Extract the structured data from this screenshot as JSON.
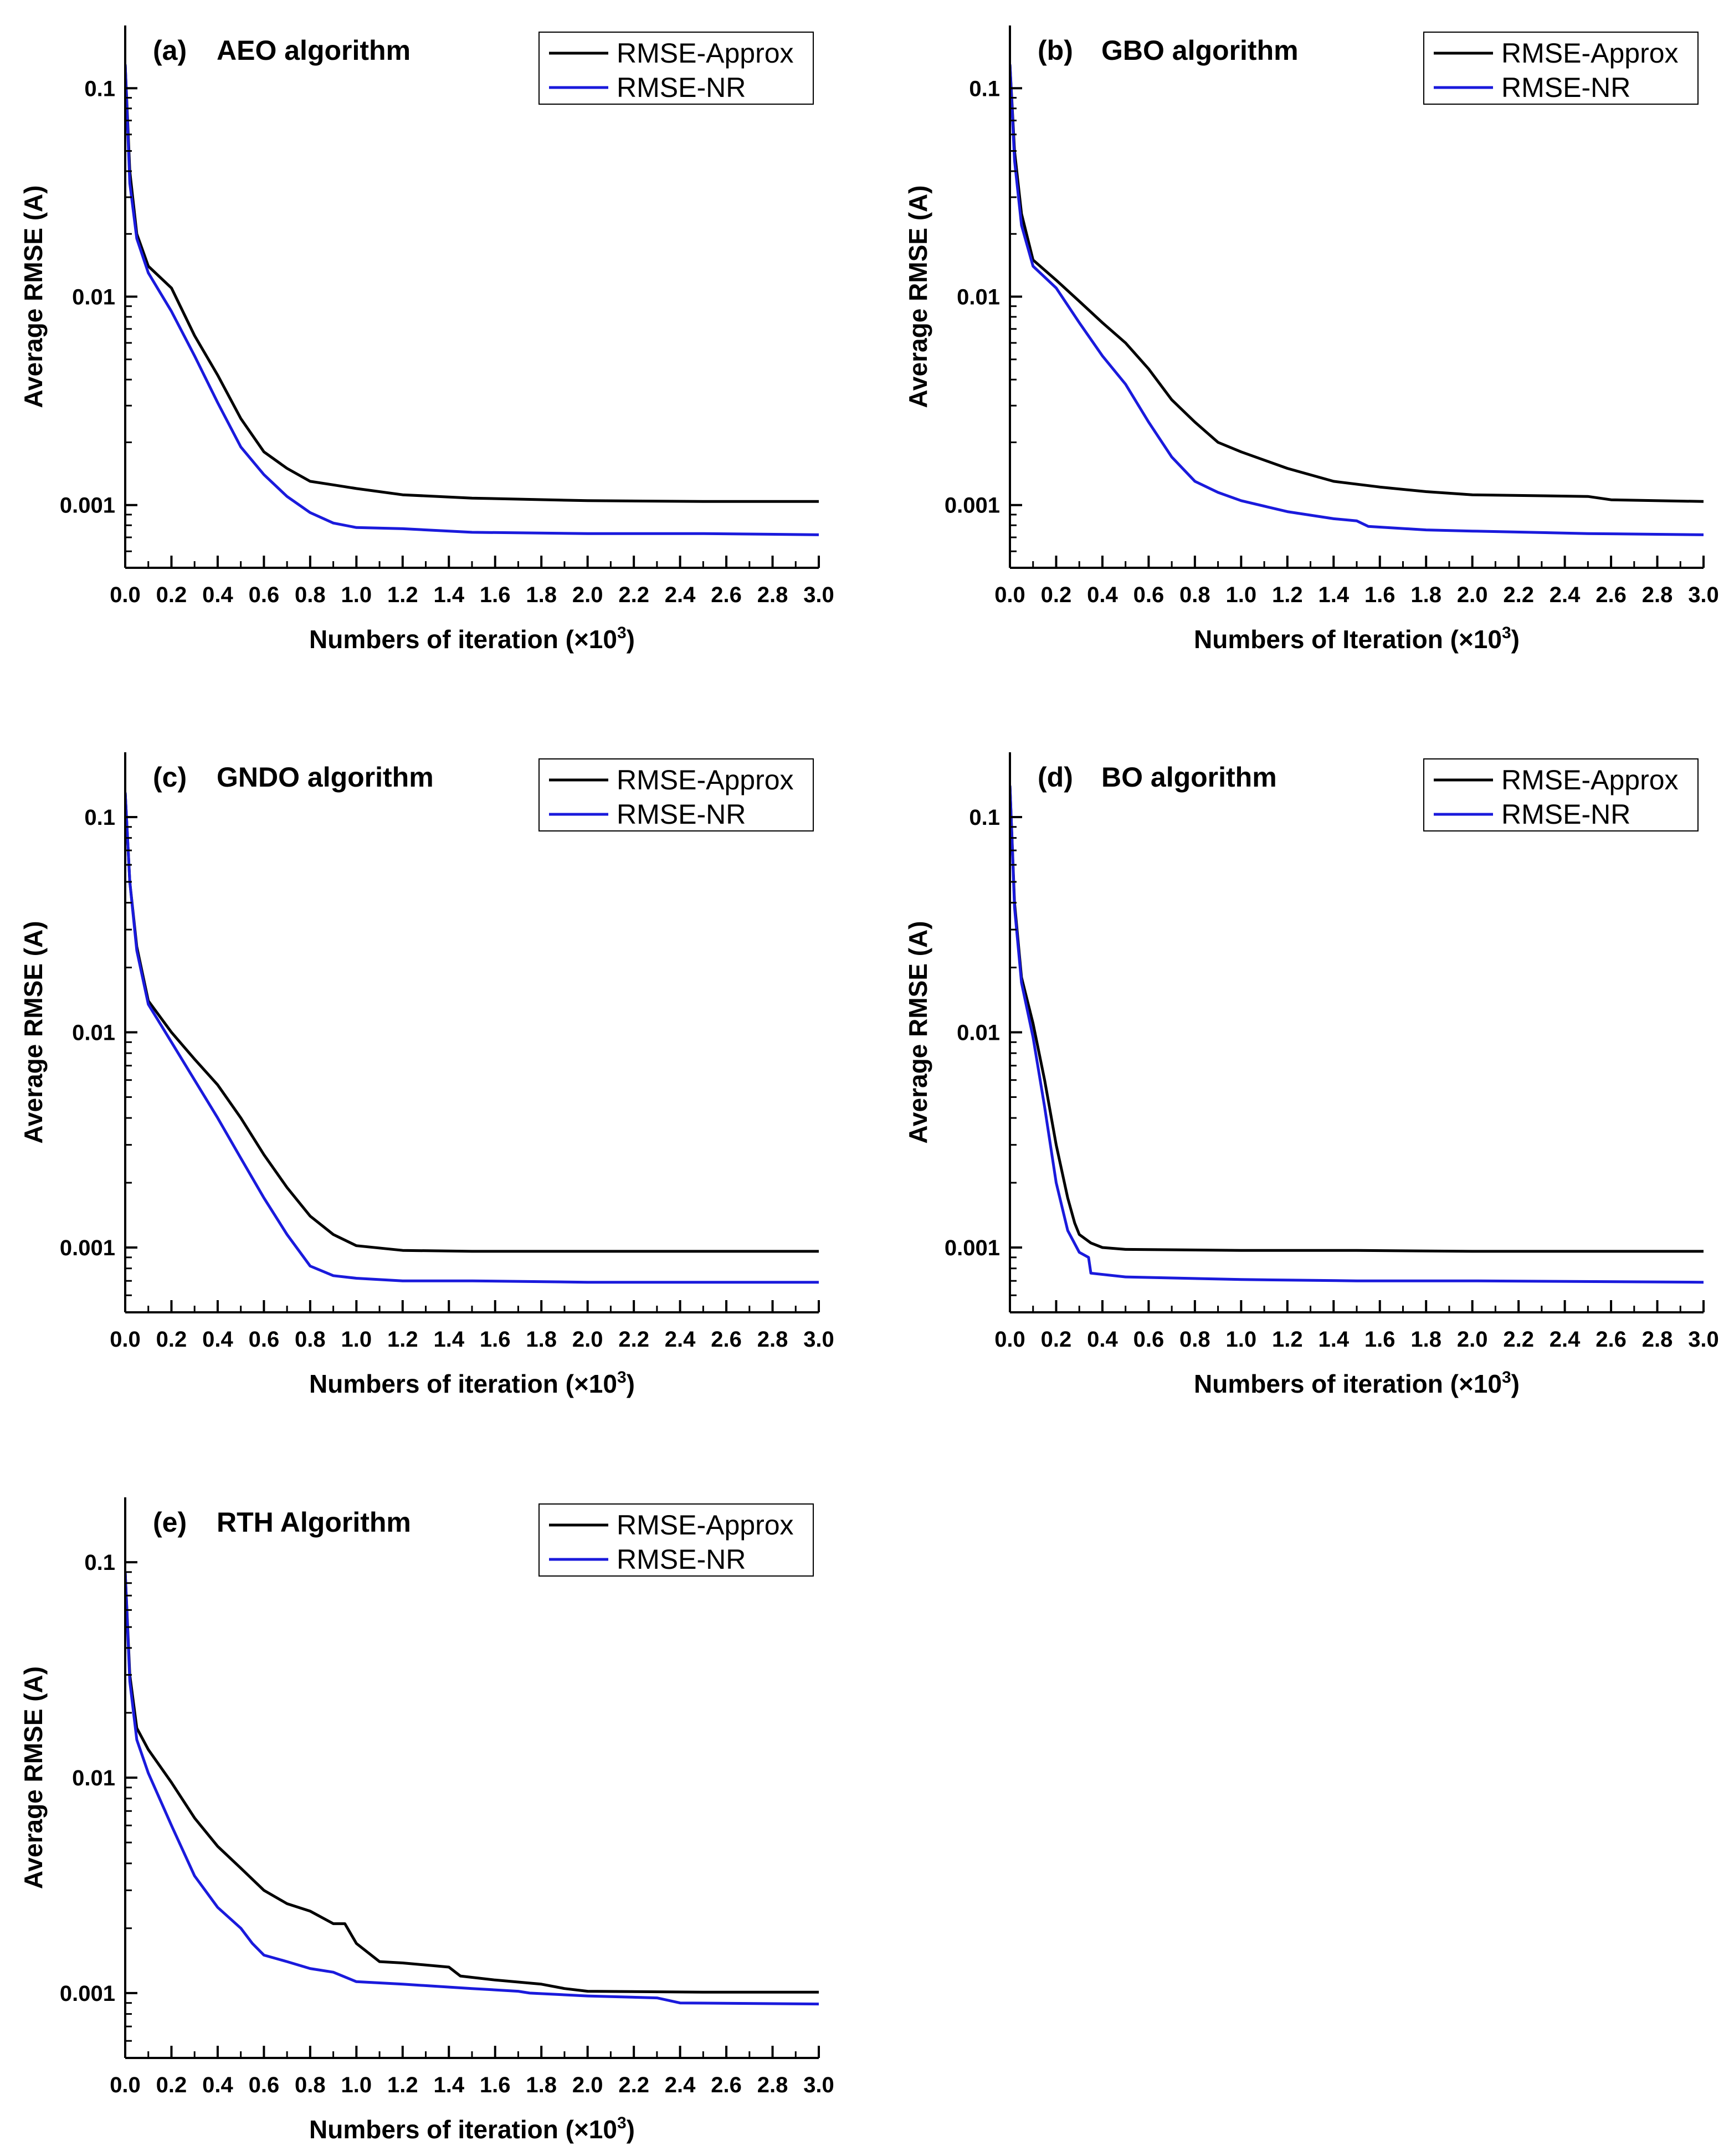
{
  "figure": {
    "background": "#ffffff",
    "axis_color": "#000000"
  },
  "chart_data": [
    {
      "type": "line",
      "panel_label": "(a)",
      "title": "AEO algorithm",
      "xlabel": "Numbers of iteration (×10",
      "xlabel_sup": "3",
      "xlabel_end": ")",
      "ylabel": "Average RMSE (A)",
      "xlim": [
        0,
        3.0
      ],
      "ylim": [
        0.0005,
        0.2
      ],
      "yscale": "log",
      "x_ticks": [
        "0.0",
        "0.2",
        "0.4",
        "0.6",
        "0.8",
        "1.0",
        "1.2",
        "1.4",
        "1.6",
        "1.8",
        "2.0",
        "2.2",
        "2.4",
        "2.6",
        "2.8",
        "3.0"
      ],
      "y_ticks": [
        {
          "value": 0.001,
          "label": "0.001"
        },
        {
          "value": 0.01,
          "label": "0.01"
        },
        {
          "value": 0.1,
          "label": "0.1"
        }
      ],
      "legend_position": "top-right",
      "series": [
        {
          "name": "RMSE-Approx",
          "color": "#000000",
          "points": [
            [
              0,
              0.13
            ],
            [
              0.02,
              0.04
            ],
            [
              0.05,
              0.02
            ],
            [
              0.1,
              0.014
            ],
            [
              0.2,
              0.011
            ],
            [
              0.3,
              0.0065
            ],
            [
              0.4,
              0.0042
            ],
            [
              0.5,
              0.0026
            ],
            [
              0.6,
              0.0018
            ],
            [
              0.7,
              0.0015
            ],
            [
              0.8,
              0.0013
            ],
            [
              0.9,
              0.00125
            ],
            [
              1.0,
              0.0012
            ],
            [
              1.2,
              0.00112
            ],
            [
              1.5,
              0.00108
            ],
            [
              2.0,
              0.00105
            ],
            [
              2.5,
              0.00104
            ],
            [
              3.0,
              0.00104
            ]
          ]
        },
        {
          "name": "RMSE-NR",
          "color": "#1a1adc",
          "points": [
            [
              0,
              0.13
            ],
            [
              0.02,
              0.035
            ],
            [
              0.05,
              0.019
            ],
            [
              0.1,
              0.013
            ],
            [
              0.2,
              0.0085
            ],
            [
              0.3,
              0.0052
            ],
            [
              0.4,
              0.0031
            ],
            [
              0.5,
              0.0019
            ],
            [
              0.6,
              0.0014
            ],
            [
              0.7,
              0.0011
            ],
            [
              0.8,
              0.00092
            ],
            [
              0.9,
              0.00082
            ],
            [
              1.0,
              0.00078
            ],
            [
              1.2,
              0.00077
            ],
            [
              1.5,
              0.00074
            ],
            [
              2.0,
              0.00073
            ],
            [
              2.5,
              0.00073
            ],
            [
              3.0,
              0.00072
            ]
          ]
        }
      ]
    },
    {
      "type": "line",
      "panel_label": "(b)",
      "title": "GBO algorithm",
      "xlabel": "Numbers of Iteration (×10",
      "xlabel_sup": "3",
      "xlabel_end": ")",
      "ylabel": "Average RMSE (A)",
      "xlim": [
        0,
        3.0
      ],
      "ylim": [
        0.0005,
        0.2
      ],
      "yscale": "log",
      "x_ticks": [
        "0.0",
        "0.2",
        "0.4",
        "0.6",
        "0.8",
        "1.0",
        "1.2",
        "1.4",
        "1.6",
        "1.8",
        "2.0",
        "2.2",
        "2.4",
        "2.6",
        "2.8",
        "3.0"
      ],
      "y_ticks": [
        {
          "value": 0.001,
          "label": "0.001"
        },
        {
          "value": 0.01,
          "label": "0.01"
        },
        {
          "value": 0.1,
          "label": "0.1"
        }
      ],
      "legend_position": "top-right",
      "series": [
        {
          "name": "RMSE-Approx",
          "color": "#000000",
          "points": [
            [
              0,
              0.13
            ],
            [
              0.02,
              0.05
            ],
            [
              0.05,
              0.025
            ],
            [
              0.1,
              0.015
            ],
            [
              0.2,
              0.012
            ],
            [
              0.3,
              0.0095
            ],
            [
              0.4,
              0.0075
            ],
            [
              0.5,
              0.006
            ],
            [
              0.6,
              0.0045
            ],
            [
              0.7,
              0.0032
            ],
            [
              0.8,
              0.0025
            ],
            [
              0.9,
              0.002
            ],
            [
              1.0,
              0.0018
            ],
            [
              1.2,
              0.0015
            ],
            [
              1.4,
              0.0013
            ],
            [
              1.6,
              0.00122
            ],
            [
              1.8,
              0.00116
            ],
            [
              2.0,
              0.00112
            ],
            [
              2.5,
              0.0011
            ],
            [
              2.6,
              0.00106
            ],
            [
              3.0,
              0.00104
            ]
          ]
        },
        {
          "name": "RMSE-NR",
          "color": "#1a1adc",
          "points": [
            [
              0,
              0.13
            ],
            [
              0.02,
              0.045
            ],
            [
              0.05,
              0.022
            ],
            [
              0.1,
              0.014
            ],
            [
              0.2,
              0.011
            ],
            [
              0.3,
              0.0075
            ],
            [
              0.4,
              0.0052
            ],
            [
              0.5,
              0.0038
            ],
            [
              0.6,
              0.0025
            ],
            [
              0.7,
              0.0017
            ],
            [
              0.8,
              0.0013
            ],
            [
              0.9,
              0.00115
            ],
            [
              1.0,
              0.00105
            ],
            [
              1.2,
              0.00093
            ],
            [
              1.4,
              0.00086
            ],
            [
              1.5,
              0.00084
            ],
            [
              1.55,
              0.00079
            ],
            [
              1.8,
              0.00076
            ],
            [
              2.0,
              0.00075
            ],
            [
              2.5,
              0.00073
            ],
            [
              3.0,
              0.00072
            ]
          ]
        }
      ]
    },
    {
      "type": "line",
      "panel_label": "(c)",
      "title": "GNDO algorithm",
      "xlabel": "Numbers of iteration (×10",
      "xlabel_sup": "3",
      "xlabel_end": ")",
      "ylabel": "Average RMSE (A)",
      "xlim": [
        0,
        3.0
      ],
      "ylim": [
        0.0005,
        0.2
      ],
      "yscale": "log",
      "x_ticks": [
        "0.0",
        "0.2",
        "0.4",
        "0.6",
        "0.8",
        "1.0",
        "1.2",
        "1.4",
        "1.6",
        "1.8",
        "2.0",
        "2.2",
        "2.4",
        "2.6",
        "2.8",
        "3.0"
      ],
      "y_ticks": [
        {
          "value": 0.001,
          "label": "0.001"
        },
        {
          "value": 0.01,
          "label": "0.01"
        },
        {
          "value": 0.1,
          "label": "0.1"
        }
      ],
      "legend_position": "top-right",
      "series": [
        {
          "name": "RMSE-Approx",
          "color": "#000000",
          "points": [
            [
              0,
              0.13
            ],
            [
              0.02,
              0.05
            ],
            [
              0.05,
              0.025
            ],
            [
              0.1,
              0.014
            ],
            [
              0.2,
              0.01
            ],
            [
              0.3,
              0.0075
            ],
            [
              0.4,
              0.0057
            ],
            [
              0.5,
              0.004
            ],
            [
              0.6,
              0.0027
            ],
            [
              0.7,
              0.0019
            ],
            [
              0.8,
              0.0014
            ],
            [
              0.9,
              0.00115
            ],
            [
              1.0,
              0.00102
            ],
            [
              1.2,
              0.00097
            ],
            [
              1.5,
              0.00096
            ],
            [
              2.0,
              0.00096
            ],
            [
              3.0,
              0.00096
            ]
          ]
        },
        {
          "name": "RMSE-NR",
          "color": "#1a1adc",
          "points": [
            [
              0,
              0.13
            ],
            [
              0.02,
              0.05
            ],
            [
              0.05,
              0.024
            ],
            [
              0.1,
              0.0135
            ],
            [
              0.2,
              0.009
            ],
            [
              0.3,
              0.006
            ],
            [
              0.4,
              0.004
            ],
            [
              0.5,
              0.0026
            ],
            [
              0.6,
              0.0017
            ],
            [
              0.7,
              0.00115
            ],
            [
              0.8,
              0.00082
            ],
            [
              0.9,
              0.00074
            ],
            [
              1.0,
              0.00072
            ],
            [
              1.2,
              0.0007
            ],
            [
              1.5,
              0.0007
            ],
            [
              2.0,
              0.00069
            ],
            [
              3.0,
              0.00069
            ]
          ]
        }
      ]
    },
    {
      "type": "line",
      "panel_label": "(d)",
      "title": "BO algorithm",
      "xlabel": "Numbers of iteration (×10",
      "xlabel_sup": "3",
      "xlabel_end": ")",
      "ylabel": "Average RMSE (A)",
      "xlim": [
        0,
        3.0
      ],
      "ylim": [
        0.0005,
        0.2
      ],
      "yscale": "log",
      "x_ticks": [
        "0.0",
        "0.2",
        "0.4",
        "0.6",
        "0.8",
        "1.0",
        "1.2",
        "1.4",
        "1.6",
        "1.8",
        "2.0",
        "2.2",
        "2.4",
        "2.6",
        "2.8",
        "3.0"
      ],
      "y_ticks": [
        {
          "value": 0.001,
          "label": "0.001"
        },
        {
          "value": 0.01,
          "label": "0.01"
        },
        {
          "value": 0.1,
          "label": "0.1"
        }
      ],
      "legend_position": "top-right",
      "series": [
        {
          "name": "RMSE-Approx",
          "color": "#000000",
          "points": [
            [
              0,
              0.14
            ],
            [
              0.02,
              0.04
            ],
            [
              0.05,
              0.018
            ],
            [
              0.1,
              0.011
            ],
            [
              0.15,
              0.006
            ],
            [
              0.2,
              0.003
            ],
            [
              0.25,
              0.0017
            ],
            [
              0.28,
              0.0013
            ],
            [
              0.3,
              0.00115
            ],
            [
              0.35,
              0.00105
            ],
            [
              0.4,
              0.001
            ],
            [
              0.5,
              0.00098
            ],
            [
              1.0,
              0.00097
            ],
            [
              1.5,
              0.00097
            ],
            [
              2.0,
              0.00096
            ],
            [
              3.0,
              0.00096
            ]
          ]
        },
        {
          "name": "RMSE-NR",
          "color": "#1a1adc",
          "points": [
            [
              0,
              0.14
            ],
            [
              0.02,
              0.038
            ],
            [
              0.05,
              0.017
            ],
            [
              0.1,
              0.0095
            ],
            [
              0.15,
              0.0045
            ],
            [
              0.2,
              0.002
            ],
            [
              0.25,
              0.0012
            ],
            [
              0.3,
              0.00095
            ],
            [
              0.34,
              0.0009
            ],
            [
              0.35,
              0.00076
            ],
            [
              0.5,
              0.00073
            ],
            [
              1.0,
              0.00071
            ],
            [
              1.5,
              0.0007
            ],
            [
              2.0,
              0.0007
            ],
            [
              3.0,
              0.00069
            ]
          ]
        }
      ]
    },
    {
      "type": "line",
      "panel_label": "(e)",
      "title": "RTH Algorithm",
      "xlabel": "Numbers of iteration (×10",
      "xlabel_sup": "3",
      "xlabel_end": ")",
      "ylabel": "Average RMSE (A)",
      "xlim": [
        0,
        3.0
      ],
      "ylim": [
        0.0005,
        0.2
      ],
      "yscale": "log",
      "x_ticks": [
        "0.0",
        "0.2",
        "0.4",
        "0.6",
        "0.8",
        "1.0",
        "1.2",
        "1.4",
        "1.6",
        "1.8",
        "2.0",
        "2.2",
        "2.4",
        "2.6",
        "2.8",
        "3.0"
      ],
      "y_ticks": [
        {
          "value": 0.001,
          "label": "0.001"
        },
        {
          "value": 0.01,
          "label": "0.01"
        },
        {
          "value": 0.1,
          "label": "0.1"
        }
      ],
      "legend_position": "top-right",
      "series": [
        {
          "name": "RMSE-Approx",
          "color": "#000000",
          "points": [
            [
              0,
              0.09
            ],
            [
              0.02,
              0.03
            ],
            [
              0.05,
              0.017
            ],
            [
              0.1,
              0.0135
            ],
            [
              0.2,
              0.0095
            ],
            [
              0.3,
              0.0065
            ],
            [
              0.4,
              0.0048
            ],
            [
              0.5,
              0.0038
            ],
            [
              0.6,
              0.003
            ],
            [
              0.7,
              0.0026
            ],
            [
              0.8,
              0.0024
            ],
            [
              0.9,
              0.0021
            ],
            [
              0.95,
              0.0021
            ],
            [
              1.0,
              0.0017
            ],
            [
              1.1,
              0.0014
            ],
            [
              1.2,
              0.00138
            ],
            [
              1.4,
              0.00132
            ],
            [
              1.45,
              0.0012
            ],
            [
              1.6,
              0.00115
            ],
            [
              1.8,
              0.0011
            ],
            [
              1.9,
              0.00105
            ],
            [
              2.0,
              0.00102
            ],
            [
              2.5,
              0.00101
            ],
            [
              3.0,
              0.00101
            ]
          ]
        },
        {
          "name": "RMSE-NR",
          "color": "#1a1adc",
          "points": [
            [
              0,
              0.09
            ],
            [
              0.02,
              0.028
            ],
            [
              0.05,
              0.015
            ],
            [
              0.1,
              0.0105
            ],
            [
              0.2,
              0.006
            ],
            [
              0.3,
              0.0035
            ],
            [
              0.4,
              0.0025
            ],
            [
              0.5,
              0.002
            ],
            [
              0.55,
              0.0017
            ],
            [
              0.6,
              0.0015
            ],
            [
              0.7,
              0.0014
            ],
            [
              0.8,
              0.0013
            ],
            [
              0.9,
              0.00125
            ],
            [
              1.0,
              0.00113
            ],
            [
              1.2,
              0.0011
            ],
            [
              1.5,
              0.00105
            ],
            [
              1.7,
              0.00102
            ],
            [
              1.75,
              0.001
            ],
            [
              2.0,
              0.00097
            ],
            [
              2.3,
              0.00095
            ],
            [
              2.4,
              0.0009
            ],
            [
              3.0,
              0.00089
            ]
          ]
        }
      ]
    }
  ]
}
